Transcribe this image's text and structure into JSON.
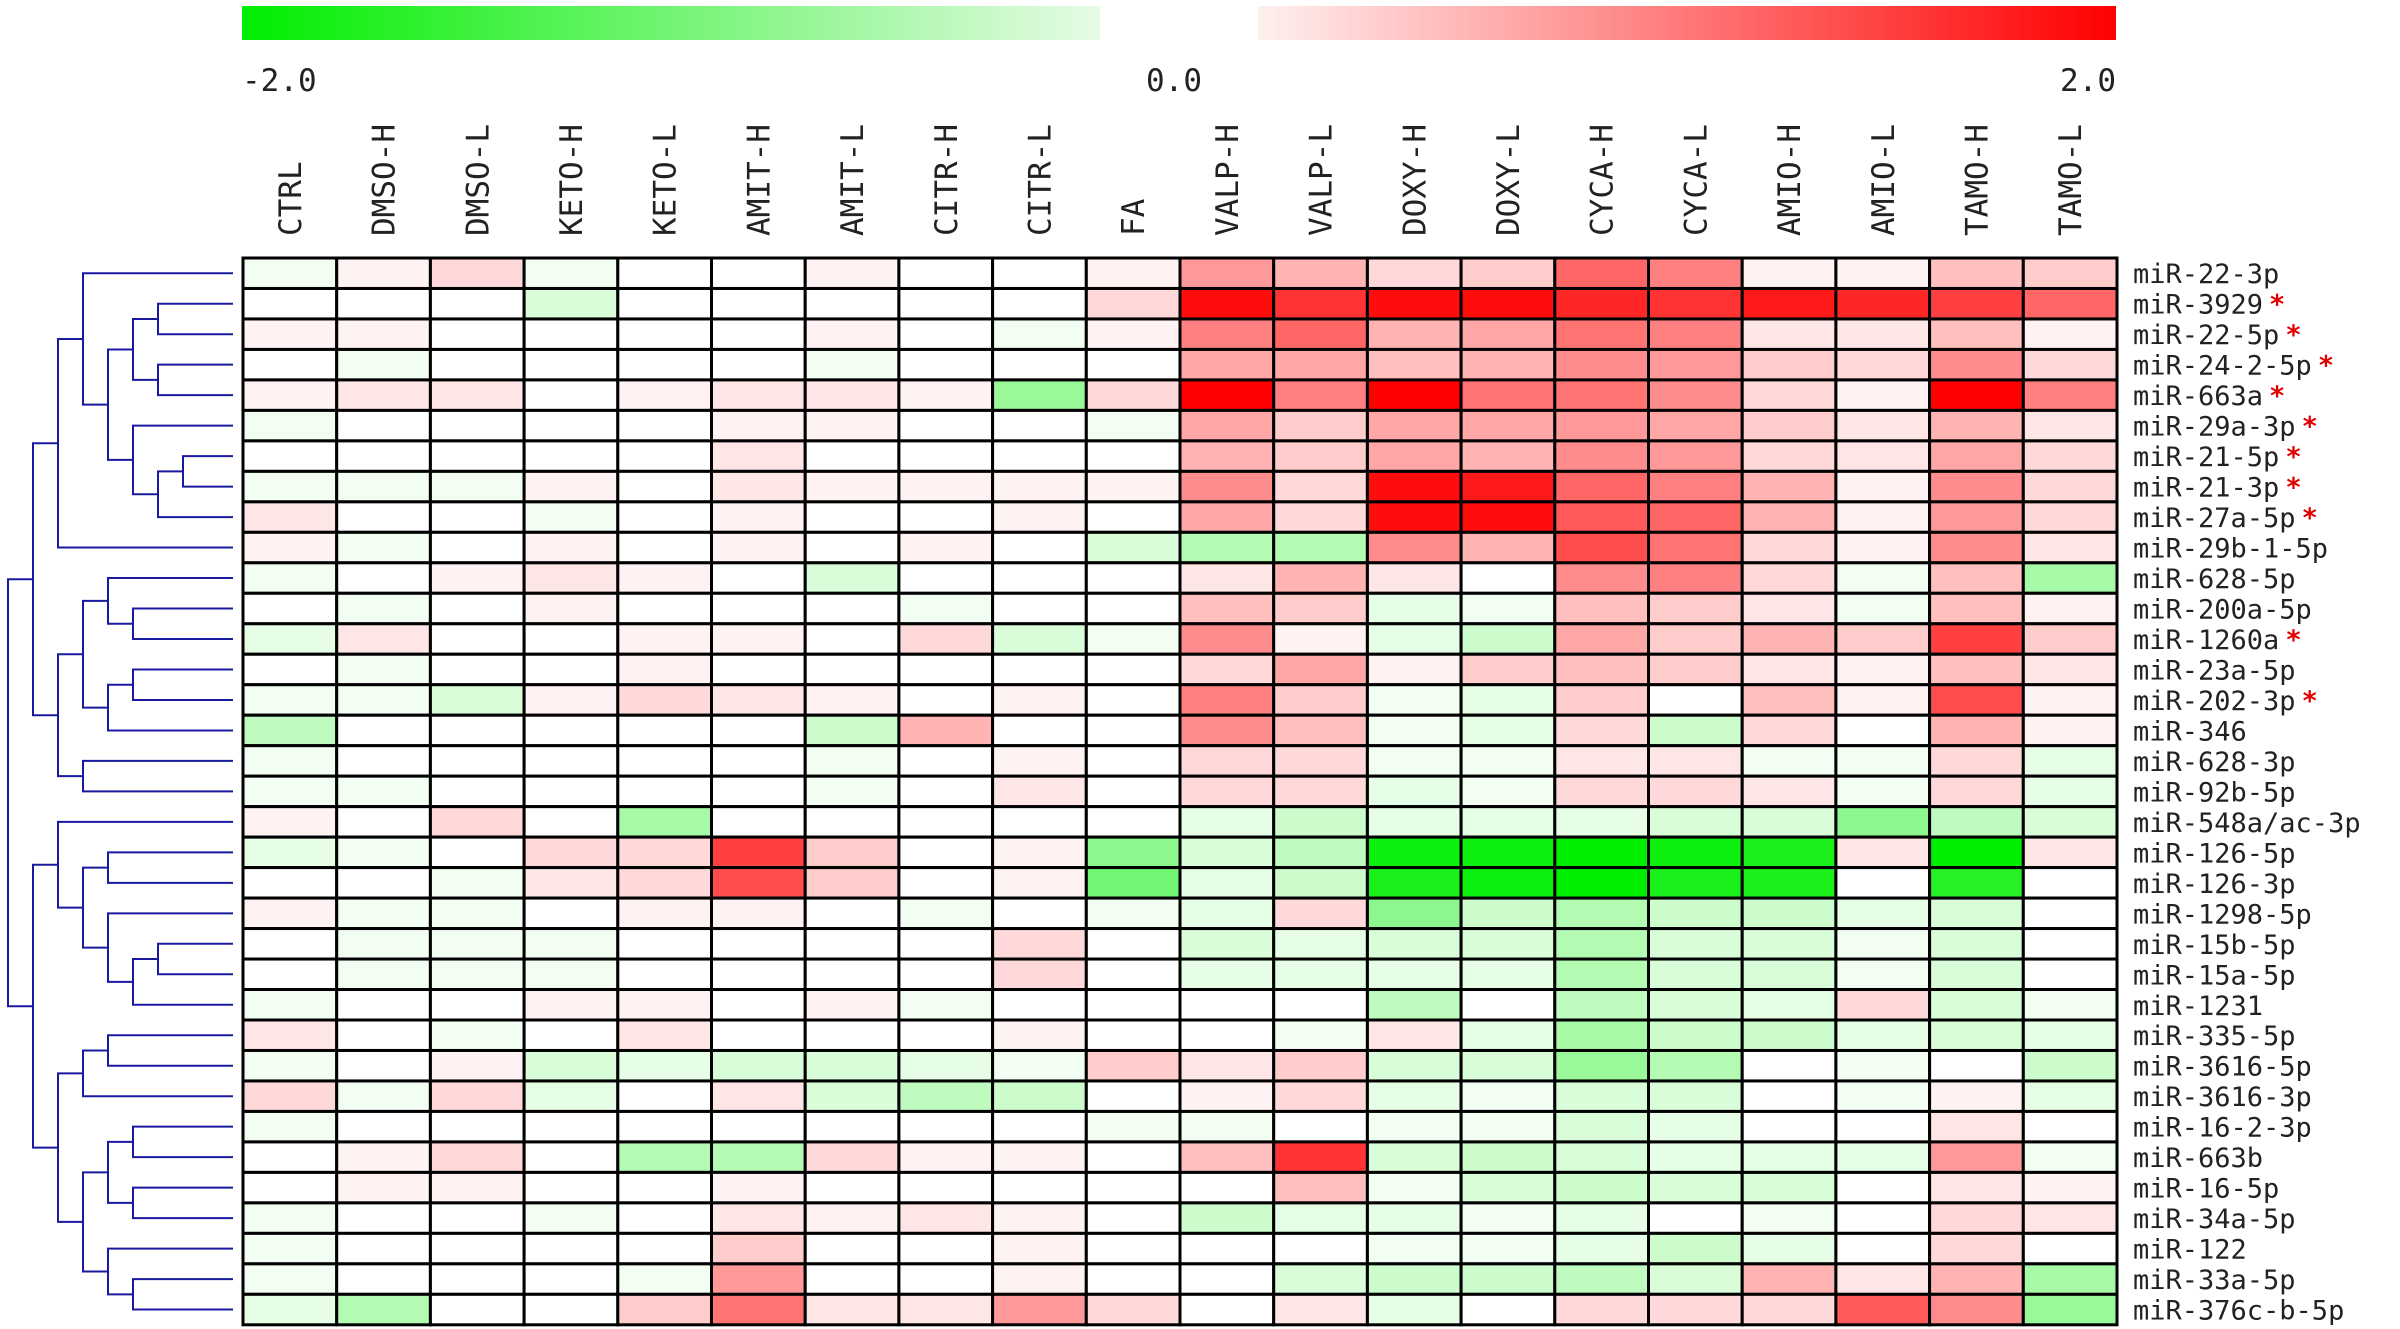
{
  "chart_data": {
    "type": "heatmap",
    "title": "",
    "xlabel": "",
    "ylabel": "",
    "color_scale": {
      "min": -2.0,
      "mid": 0.0,
      "max": 2.0,
      "tick_labels": [
        "-2.0",
        "0.0",
        "2.0"
      ],
      "low_color": "#00ee00",
      "mid_color": "#ffffff",
      "high_color": "#ff0000"
    },
    "columns": [
      "CTRL",
      "DMSO-H",
      "DMSO-L",
      "KETO-H",
      "KETO-L",
      "AMIT-H",
      "AMIT-L",
      "CITR-H",
      "CITR-L",
      "FA",
      "VALP-H",
      "VALP-L",
      "DOXY-H",
      "DOXY-L",
      "CYCA-H",
      "CYCA-L",
      "AMIO-H",
      "AMIO-L",
      "TAMO-H",
      "TAMO-L"
    ],
    "rows": [
      {
        "name": "miR-22-3p",
        "star": false,
        "values": [
          -0.1,
          0.1,
          0.3,
          -0.1,
          0.0,
          0.0,
          0.1,
          0.0,
          0.0,
          0.1,
          0.8,
          0.6,
          0.3,
          0.4,
          1.2,
          1.0,
          0.1,
          0.1,
          0.5,
          0.4
        ]
      },
      {
        "name": "miR-3929",
        "star": true,
        "values": [
          0.0,
          0.0,
          0.0,
          -0.3,
          0.0,
          0.0,
          0.0,
          0.0,
          0.0,
          0.3,
          1.9,
          1.6,
          1.9,
          1.9,
          1.7,
          1.6,
          1.8,
          1.7,
          1.5,
          1.2
        ]
      },
      {
        "name": "miR-22-5p",
        "star": true,
        "values": [
          0.1,
          0.1,
          0.0,
          0.0,
          0.0,
          0.0,
          0.1,
          0.0,
          -0.1,
          0.1,
          1.0,
          1.2,
          0.6,
          0.7,
          1.1,
          1.0,
          0.2,
          0.2,
          0.5,
          0.1
        ]
      },
      {
        "name": "miR-24-2-5p",
        "star": true,
        "values": [
          0.0,
          -0.1,
          0.0,
          0.0,
          0.0,
          0.0,
          -0.1,
          0.0,
          0.0,
          0.0,
          0.7,
          0.7,
          0.5,
          0.6,
          0.9,
          0.8,
          0.4,
          0.3,
          0.9,
          0.3
        ]
      },
      {
        "name": "miR-663a",
        "star": true,
        "values": [
          0.1,
          0.2,
          0.2,
          0.0,
          0.1,
          0.2,
          0.2,
          0.1,
          -0.8,
          0.3,
          2.0,
          1.0,
          2.0,
          1.1,
          1.1,
          0.9,
          0.3,
          0.1,
          2.0,
          1.0
        ]
      },
      {
        "name": "miR-29a-3p",
        "star": true,
        "values": [
          -0.1,
          0.0,
          0.0,
          0.0,
          0.0,
          0.1,
          0.1,
          0.0,
          0.0,
          -0.1,
          0.7,
          0.4,
          0.7,
          0.7,
          0.8,
          0.7,
          0.4,
          0.2,
          0.6,
          0.2
        ]
      },
      {
        "name": "miR-21-5p",
        "star": true,
        "values": [
          0.0,
          0.0,
          0.0,
          0.0,
          0.0,
          0.2,
          0.0,
          0.0,
          0.0,
          0.0,
          0.6,
          0.4,
          0.7,
          0.6,
          0.9,
          0.8,
          0.3,
          0.2,
          0.7,
          0.3
        ]
      },
      {
        "name": "miR-21-3p",
        "star": true,
        "values": [
          -0.1,
          -0.1,
          -0.1,
          0.1,
          0.0,
          0.2,
          0.1,
          0.1,
          0.1,
          0.1,
          0.9,
          0.3,
          1.9,
          1.8,
          1.2,
          1.0,
          0.6,
          0.1,
          0.9,
          0.3
        ]
      },
      {
        "name": "miR-27a-5p",
        "star": true,
        "values": [
          0.2,
          0.0,
          0.0,
          -0.1,
          0.0,
          0.1,
          0.0,
          0.0,
          0.1,
          0.0,
          0.7,
          0.3,
          1.9,
          1.9,
          1.3,
          1.2,
          0.6,
          0.1,
          0.8,
          0.3
        ]
      },
      {
        "name": "miR-29b-1-5p",
        "star": false,
        "values": [
          0.1,
          -0.1,
          0.0,
          0.1,
          0.0,
          0.1,
          0.0,
          0.1,
          0.0,
          -0.3,
          -0.6,
          -0.6,
          0.9,
          0.6,
          1.4,
          1.1,
          0.3,
          0.1,
          0.9,
          0.2
        ]
      },
      {
        "name": "miR-628-5p",
        "star": false,
        "values": [
          -0.1,
          0.0,
          0.1,
          0.2,
          0.1,
          0.0,
          -0.3,
          0.0,
          0.0,
          0.0,
          0.2,
          0.6,
          0.2,
          0.0,
          0.9,
          1.0,
          0.3,
          -0.1,
          0.5,
          -0.7
        ]
      },
      {
        "name": "miR-200a-5p",
        "star": false,
        "values": [
          0.0,
          -0.1,
          0.0,
          0.1,
          0.0,
          0.0,
          0.0,
          -0.1,
          0.0,
          0.0,
          0.5,
          0.4,
          -0.2,
          -0.1,
          0.5,
          0.4,
          0.2,
          -0.1,
          0.5,
          0.1
        ]
      },
      {
        "name": "miR-1260a",
        "star": true,
        "values": [
          -0.2,
          0.2,
          0.0,
          0.0,
          0.1,
          0.1,
          0.0,
          0.3,
          -0.3,
          -0.1,
          0.9,
          0.1,
          -0.2,
          -0.4,
          0.7,
          0.4,
          0.6,
          0.4,
          1.5,
          0.4
        ]
      },
      {
        "name": "miR-23a-5p",
        "star": false,
        "values": [
          0.0,
          -0.1,
          0.0,
          0.0,
          0.1,
          0.0,
          0.0,
          0.0,
          0.0,
          0.0,
          0.3,
          0.7,
          0.1,
          0.4,
          0.5,
          0.4,
          0.2,
          0.1,
          0.5,
          0.2
        ]
      },
      {
        "name": "miR-202-3p",
        "star": true,
        "values": [
          -0.1,
          -0.1,
          -0.3,
          0.1,
          0.3,
          0.2,
          0.1,
          0.0,
          0.1,
          0.0,
          1.0,
          0.4,
          -0.1,
          -0.2,
          0.4,
          0.0,
          0.5,
          0.1,
          1.4,
          0.1
        ]
      },
      {
        "name": "miR-346",
        "star": false,
        "values": [
          -0.5,
          0.0,
          0.0,
          0.0,
          0.0,
          0.0,
          -0.4,
          0.6,
          0.0,
          0.0,
          0.9,
          0.5,
          -0.1,
          -0.2,
          0.3,
          -0.4,
          0.3,
          0.0,
          0.6,
          0.1
        ]
      },
      {
        "name": "miR-628-3p",
        "star": false,
        "values": [
          -0.1,
          0.0,
          0.0,
          0.0,
          0.0,
          0.0,
          -0.1,
          0.0,
          0.1,
          0.0,
          0.3,
          0.3,
          -0.1,
          -0.1,
          0.2,
          0.2,
          -0.1,
          -0.1,
          0.3,
          -0.2
        ]
      },
      {
        "name": "miR-92b-5p",
        "star": false,
        "values": [
          -0.1,
          -0.1,
          0.0,
          0.0,
          0.0,
          0.0,
          -0.1,
          0.0,
          0.2,
          0.0,
          0.3,
          0.3,
          -0.2,
          -0.1,
          0.3,
          0.3,
          0.2,
          -0.1,
          0.3,
          -0.2
        ]
      },
      {
        "name": "miR-548a/ac-3p",
        "star": false,
        "values": [
          0.1,
          0.0,
          0.3,
          0.0,
          -0.7,
          0.0,
          0.0,
          0.0,
          0.0,
          0.0,
          -0.2,
          -0.4,
          -0.2,
          -0.2,
          -0.2,
          -0.3,
          -0.3,
          -0.9,
          -0.5,
          -0.3
        ]
      },
      {
        "name": "miR-126-5p",
        "star": false,
        "values": [
          -0.2,
          -0.1,
          0.0,
          0.3,
          0.3,
          1.5,
          0.4,
          0.0,
          0.1,
          -0.9,
          -0.3,
          -0.5,
          -1.9,
          -1.9,
          -2.0,
          -1.9,
          -1.8,
          0.2,
          -2.0,
          0.2
        ]
      },
      {
        "name": "miR-126-3p",
        "star": false,
        "values": [
          0.0,
          0.0,
          -0.1,
          0.2,
          0.3,
          1.4,
          0.4,
          0.0,
          0.1,
          -1.1,
          -0.2,
          -0.4,
          -1.8,
          -1.9,
          -2.0,
          -1.8,
          -1.8,
          0.0,
          -1.7,
          0.0
        ]
      },
      {
        "name": "miR-1298-5p",
        "star": false,
        "values": [
          0.1,
          -0.1,
          -0.1,
          0.0,
          0.1,
          0.1,
          0.0,
          -0.1,
          0.0,
          -0.1,
          -0.2,
          0.3,
          -0.9,
          -0.4,
          -0.6,
          -0.4,
          -0.4,
          -0.2,
          -0.3,
          0.0
        ]
      },
      {
        "name": "miR-15b-5p",
        "star": false,
        "values": [
          0.0,
          -0.1,
          -0.1,
          -0.1,
          0.0,
          0.0,
          0.0,
          0.0,
          0.3,
          0.0,
          -0.3,
          -0.2,
          -0.3,
          -0.3,
          -0.6,
          -0.3,
          -0.3,
          -0.1,
          -0.3,
          0.0
        ]
      },
      {
        "name": "miR-15a-5p",
        "star": false,
        "values": [
          0.0,
          -0.1,
          -0.1,
          -0.1,
          0.0,
          0.0,
          0.0,
          0.0,
          0.3,
          0.0,
          -0.2,
          -0.2,
          -0.2,
          -0.2,
          -0.6,
          -0.3,
          -0.3,
          -0.1,
          -0.3,
          0.0
        ]
      },
      {
        "name": "miR-1231",
        "star": false,
        "values": [
          -0.1,
          0.0,
          0.0,
          0.1,
          0.1,
          0.0,
          0.1,
          -0.1,
          0.0,
          0.0,
          0.0,
          0.0,
          -0.5,
          0.0,
          -0.5,
          -0.3,
          -0.2,
          0.3,
          -0.3,
          -0.1
        ]
      },
      {
        "name": "miR-335-5p",
        "star": false,
        "values": [
          0.2,
          0.0,
          -0.1,
          0.0,
          0.2,
          0.0,
          0.0,
          0.0,
          0.1,
          0.0,
          0.0,
          -0.1,
          0.2,
          -0.2,
          -0.7,
          -0.4,
          -0.4,
          -0.2,
          -0.3,
          -0.2
        ]
      },
      {
        "name": "miR-3616-5p",
        "star": false,
        "values": [
          -0.1,
          0.0,
          0.1,
          -0.3,
          -0.2,
          -0.3,
          -0.3,
          -0.2,
          -0.1,
          0.4,
          0.2,
          0.4,
          -0.3,
          -0.3,
          -0.8,
          -0.6,
          0.0,
          -0.1,
          0.0,
          -0.4
        ]
      },
      {
        "name": "miR-3616-3p",
        "star": false,
        "values": [
          0.3,
          -0.1,
          0.3,
          -0.2,
          0.0,
          0.2,
          -0.3,
          -0.5,
          -0.4,
          0.0,
          0.1,
          0.3,
          -0.2,
          -0.1,
          -0.3,
          -0.3,
          0.0,
          -0.1,
          0.1,
          -0.2
        ]
      },
      {
        "name": "miR-16-2-3p",
        "star": false,
        "values": [
          -0.1,
          0.0,
          0.0,
          0.0,
          0.0,
          0.0,
          0.0,
          0.0,
          0.0,
          -0.1,
          -0.1,
          0.0,
          -0.1,
          -0.1,
          -0.3,
          -0.2,
          0.0,
          0.0,
          0.2,
          0.0
        ]
      },
      {
        "name": "miR-663b",
        "star": false,
        "values": [
          0.0,
          0.1,
          0.3,
          0.0,
          -0.6,
          -0.6,
          0.3,
          0.1,
          0.1,
          0.0,
          0.5,
          1.6,
          -0.3,
          -0.4,
          -0.3,
          -0.2,
          -0.2,
          -0.2,
          0.8,
          -0.1
        ]
      },
      {
        "name": "miR-16-5p",
        "star": false,
        "values": [
          0.0,
          0.1,
          0.1,
          0.0,
          0.0,
          0.1,
          0.0,
          0.0,
          0.0,
          0.0,
          0.0,
          0.5,
          -0.1,
          -0.3,
          -0.4,
          -0.3,
          -0.3,
          0.0,
          0.2,
          0.1
        ]
      },
      {
        "name": "miR-34a-5p",
        "star": false,
        "values": [
          -0.1,
          0.0,
          0.0,
          -0.1,
          0.0,
          0.2,
          0.1,
          0.2,
          0.1,
          0.0,
          -0.4,
          -0.2,
          -0.2,
          -0.1,
          -0.2,
          0.0,
          -0.1,
          0.0,
          0.3,
          0.2
        ]
      },
      {
        "name": "miR-122",
        "star": false,
        "values": [
          -0.1,
          0.0,
          0.0,
          0.0,
          0.0,
          0.4,
          0.0,
          0.0,
          0.1,
          0.0,
          0.0,
          0.0,
          -0.1,
          -0.1,
          -0.2,
          -0.4,
          -0.2,
          0.0,
          0.3,
          0.0
        ]
      },
      {
        "name": "miR-33a-5p",
        "star": false,
        "values": [
          -0.1,
          0.0,
          0.0,
          0.0,
          -0.1,
          0.8,
          0.0,
          0.0,
          0.1,
          0.0,
          0.0,
          -0.3,
          -0.4,
          -0.4,
          -0.5,
          -0.3,
          0.6,
          0.2,
          0.6,
          -0.7
        ]
      },
      {
        "name": "miR-376c-b-5p",
        "star": false,
        "values": [
          -0.2,
          -0.6,
          0.0,
          0.0,
          0.4,
          1.1,
          0.2,
          0.2,
          0.8,
          0.3,
          0.0,
          0.2,
          -0.2,
          0.0,
          0.3,
          0.3,
          0.3,
          1.3,
          0.9,
          -0.8
        ]
      }
    ],
    "star_symbol": "*",
    "star_color": "#e00000",
    "dendrogram_color": "#1a1aa0",
    "grid": true
  }
}
